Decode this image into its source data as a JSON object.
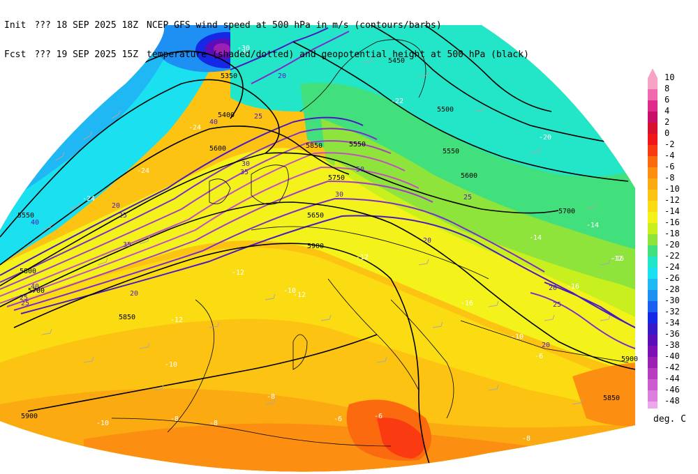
{
  "header": {
    "line1": [
      "Init",
      "??? 18 SEP 2025 18Z",
      "NCEP GFS wind speed at 500 hPa in m/s (contours/barbs)"
    ],
    "line2": [
      "Fcst",
      "??? 19 SEP 2025 15Z",
      "temperature (shaded/dotted) and geopotential height at 500 hPa (black)"
    ]
  },
  "colorbar": {
    "units": "deg. C",
    "levels": [
      {
        "label": "10",
        "color": "#f7a3c6"
      },
      {
        "label": "8",
        "color": "#f06ab0"
      },
      {
        "label": "6",
        "color": "#e02b8a"
      },
      {
        "label": "4",
        "color": "#c80e66"
      },
      {
        "label": "2",
        "color": "#d8102f"
      },
      {
        "label": "0",
        "color": "#f0161a"
      },
      {
        "label": "-2",
        "color": "#fa3a10"
      },
      {
        "label": "-4",
        "color": "#fb6a0e"
      },
      {
        "label": "-6",
        "color": "#fc8f11"
      },
      {
        "label": "-8",
        "color": "#fcaa12"
      },
      {
        "label": "-10",
        "color": "#fcc312"
      },
      {
        "label": "-12",
        "color": "#fbdb12"
      },
      {
        "label": "-14",
        "color": "#f3f21a"
      },
      {
        "label": "-16",
        "color": "#c8ef1e"
      },
      {
        "label": "-18",
        "color": "#8ee43a"
      },
      {
        "label": "-20",
        "color": "#42e07c"
      },
      {
        "label": "-22",
        "color": "#23e6c8"
      },
      {
        "label": "-24",
        "color": "#1ae0f0"
      },
      {
        "label": "-26",
        "color": "#1fb8f5"
      },
      {
        "label": "-28",
        "color": "#1e8ff3"
      },
      {
        "label": "-30",
        "color": "#1a5ef0"
      },
      {
        "label": "-32",
        "color": "#1428e6"
      },
      {
        "label": "-34",
        "color": "#3818c8"
      },
      {
        "label": "-36",
        "color": "#5c0cb8"
      },
      {
        "label": "-38",
        "color": "#7c10b4"
      },
      {
        "label": "-40",
        "color": "#9c20b4"
      },
      {
        "label": "-42",
        "color": "#b83cc0"
      },
      {
        "label": "-44",
        "color": "#cc5cd0"
      },
      {
        "label": "-46",
        "color": "#dc7ede"
      },
      {
        "label": "-48",
        "color": "#eca6ec"
      }
    ]
  },
  "height_labels": [
    "5450",
    "5500",
    "5550",
    "5600",
    "5700",
    "5850",
    "5900",
    "5700",
    "5550",
    "5350",
    "5400",
    "5550",
    "5850",
    "5900",
    "5800",
    "5850",
    "5900",
    "5650",
    "5600",
    "5750"
  ],
  "wind_labels": [
    "20",
    "25",
    "30",
    "35",
    "40",
    "50",
    "20",
    "25",
    "20",
    "30",
    "25",
    "20",
    "25",
    "20",
    "25",
    "20",
    "35",
    "40",
    "40",
    "25"
  ],
  "temp_labels": [
    "-32",
    "-30",
    "-24",
    "-24",
    "-22",
    "-20",
    "-24",
    "-14",
    "-12",
    "-10",
    "-12",
    "-10",
    "-8",
    "-6",
    "-6",
    "-8",
    "-8",
    "-10",
    "-12",
    "-16",
    "-16",
    "-12",
    "-8",
    "-6",
    "-10",
    "-14",
    "-16",
    "-12"
  ]
}
